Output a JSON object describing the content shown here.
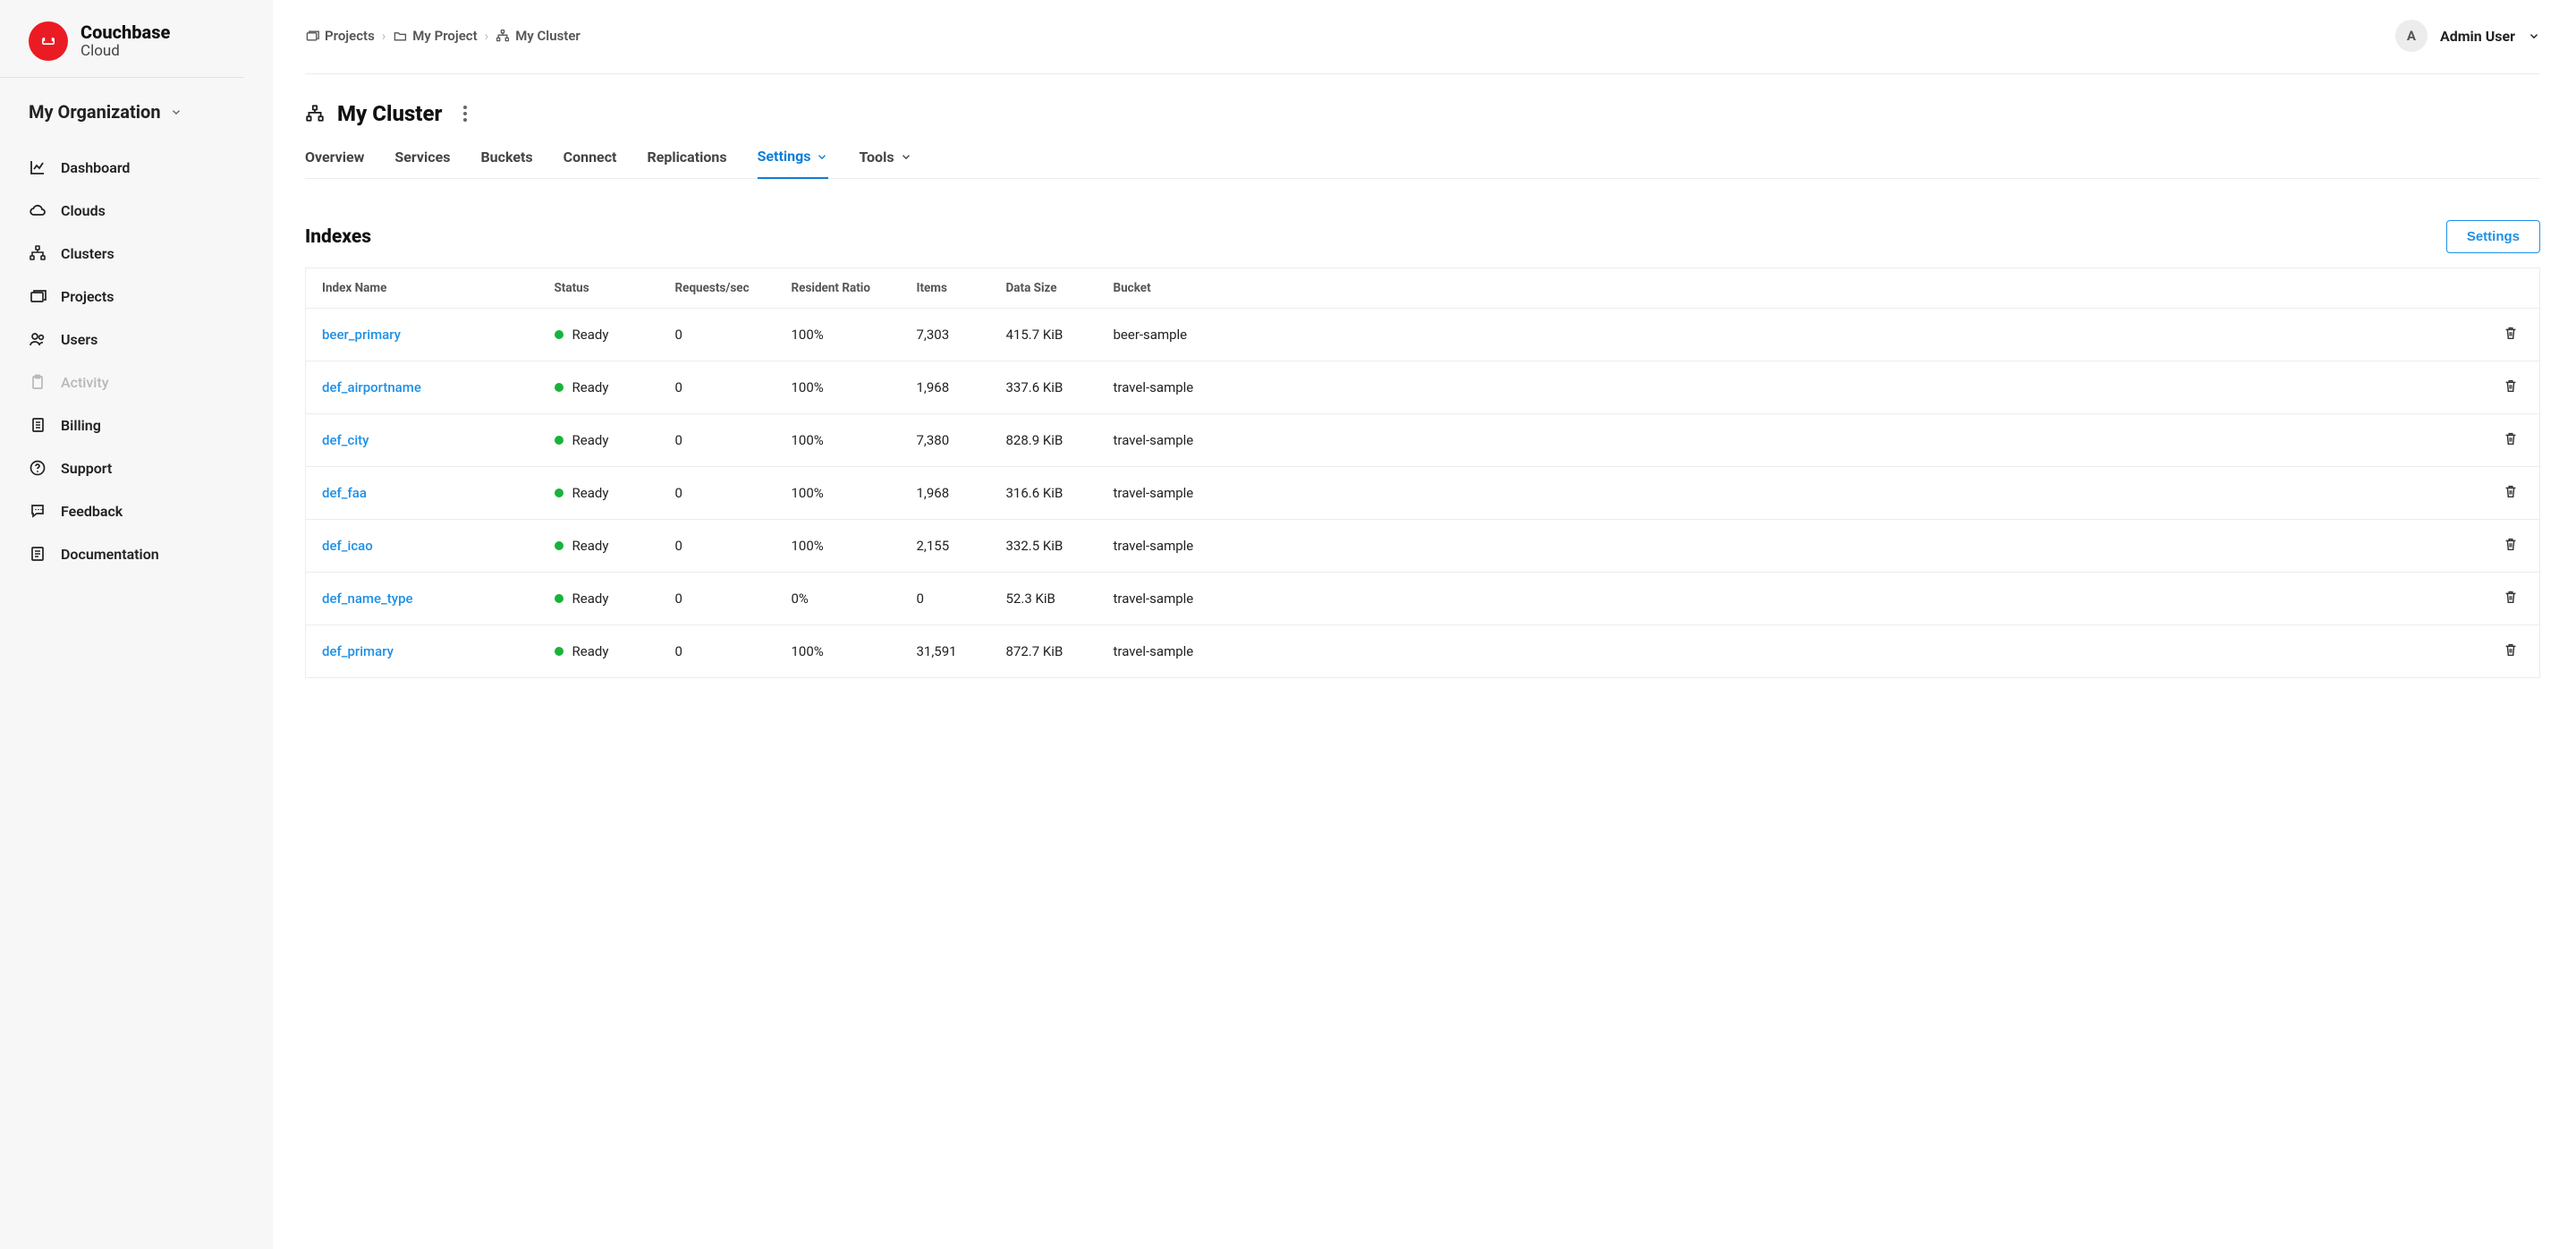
{
  "brand": {
    "title": "Couchbase",
    "subtitle": "Cloud"
  },
  "org_label": "My Organization",
  "sidebar_items": [
    {
      "id": "dashboard",
      "label": "Dashboard",
      "disabled": false,
      "icon": "chart"
    },
    {
      "id": "clouds",
      "label": "Clouds",
      "disabled": false,
      "icon": "cloud"
    },
    {
      "id": "clusters",
      "label": "Clusters",
      "disabled": false,
      "icon": "cluster"
    },
    {
      "id": "projects",
      "label": "Projects",
      "disabled": false,
      "icon": "projects"
    },
    {
      "id": "users",
      "label": "Users",
      "disabled": false,
      "icon": "users"
    },
    {
      "id": "activity",
      "label": "Activity",
      "disabled": true,
      "icon": "clipboard"
    },
    {
      "id": "billing",
      "label": "Billing",
      "disabled": false,
      "icon": "doc"
    },
    {
      "id": "support",
      "label": "Support",
      "disabled": false,
      "icon": "help"
    },
    {
      "id": "feedback",
      "label": "Feedback",
      "disabled": false,
      "icon": "chat"
    },
    {
      "id": "documentation",
      "label": "Documentation",
      "disabled": false,
      "icon": "book"
    }
  ],
  "breadcrumbs": [
    {
      "label": "Projects",
      "icon": "projects"
    },
    {
      "label": "My Project",
      "icon": "folder"
    },
    {
      "label": "My Cluster",
      "icon": "cluster"
    }
  ],
  "user": {
    "initial": "A",
    "name": "Admin User"
  },
  "page_title": "My Cluster",
  "tabs": [
    {
      "label": "Overview",
      "active": false,
      "dropdown": false
    },
    {
      "label": "Services",
      "active": false,
      "dropdown": false
    },
    {
      "label": "Buckets",
      "active": false,
      "dropdown": false
    },
    {
      "label": "Connect",
      "active": false,
      "dropdown": false
    },
    {
      "label": "Replications",
      "active": false,
      "dropdown": false
    },
    {
      "label": "Settings",
      "active": true,
      "dropdown": true
    },
    {
      "label": "Tools",
      "active": false,
      "dropdown": true
    }
  ],
  "section": {
    "title": "Indexes",
    "settings_button": "Settings"
  },
  "table": {
    "columns": [
      "Index Name",
      "Status",
      "Requests/sec",
      "Resident Ratio",
      "Items",
      "Data Size",
      "Bucket"
    ],
    "rows": [
      {
        "name": "beer_primary",
        "status": "Ready",
        "requests": "0",
        "ratio": "100%",
        "items": "7,303",
        "size": "415.7 KiB",
        "bucket": "beer-sample"
      },
      {
        "name": "def_airportname",
        "status": "Ready",
        "requests": "0",
        "ratio": "100%",
        "items": "1,968",
        "size": "337.6 KiB",
        "bucket": "travel-sample"
      },
      {
        "name": "def_city",
        "status": "Ready",
        "requests": "0",
        "ratio": "100%",
        "items": "7,380",
        "size": "828.9 KiB",
        "bucket": "travel-sample"
      },
      {
        "name": "def_faa",
        "status": "Ready",
        "requests": "0",
        "ratio": "100%",
        "items": "1,968",
        "size": "316.6 KiB",
        "bucket": "travel-sample"
      },
      {
        "name": "def_icao",
        "status": "Ready",
        "requests": "0",
        "ratio": "100%",
        "items": "2,155",
        "size": "332.5 KiB",
        "bucket": "travel-sample"
      },
      {
        "name": "def_name_type",
        "status": "Ready",
        "requests": "0",
        "ratio": "0%",
        "items": "0",
        "size": "52.3 KiB",
        "bucket": "travel-sample"
      },
      {
        "name": "def_primary",
        "status": "Ready",
        "requests": "0",
        "ratio": "100%",
        "items": "31,591",
        "size": "872.7 KiB",
        "bucket": "travel-sample"
      }
    ]
  },
  "colors": {
    "sidebar_bg": "#f7f7f7",
    "accent_red": "#eb1b24",
    "link_blue": "#1e90e6",
    "active_tab": "#0e7dd8",
    "status_green": "#17b33c",
    "border": "#ececec",
    "text_dark": "#1a1a1a",
    "text_muted": "#555555"
  }
}
